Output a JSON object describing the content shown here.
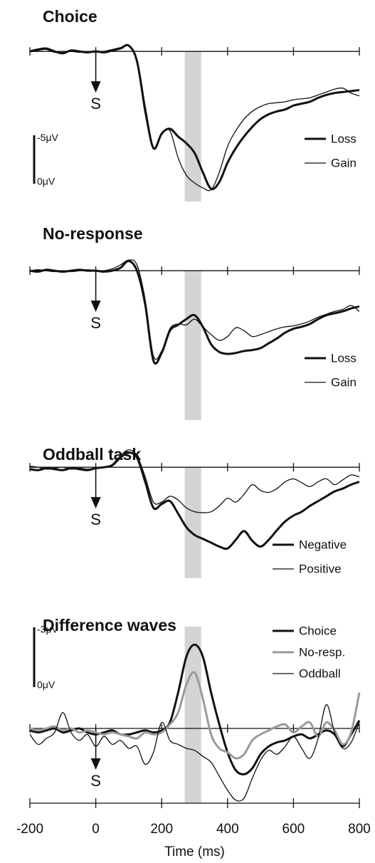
{
  "chart_data": [
    {
      "type": "line",
      "title": "Choice",
      "invert_y": true,
      "xlim": [
        -200,
        800
      ],
      "ylim": [
        -2,
        15
      ],
      "xticks": [
        -200,
        0,
        200,
        400,
        600,
        800
      ],
      "legend": "lower right",
      "highlight": [
        270,
        320
      ],
      "marker": {
        "x": 0,
        "label": "S"
      },
      "scalebar": {
        "values": [
          -5,
          0
        ],
        "labels": [
          "-5μV",
          "0μV"
        ]
      },
      "x": [
        -200,
        -175,
        -150,
        -125,
        -100,
        -75,
        -50,
        -25,
        0,
        25,
        50,
        75,
        100,
        125,
        150,
        175,
        200,
        225,
        250,
        275,
        300,
        325,
        350,
        375,
        400,
        425,
        450,
        475,
        500,
        525,
        550,
        575,
        600,
        625,
        650,
        675,
        700,
        725,
        750,
        775,
        800
      ],
      "series": [
        {
          "name": "Loss",
          "color": "#111111",
          "linewidth": 3,
          "values": [
            0,
            -0.2,
            -0.3,
            0,
            0.2,
            -0.1,
            0,
            0.1,
            0,
            0.1,
            -0.1,
            -0.3,
            -0.6,
            1.0,
            6.0,
            10.0,
            8.5,
            8.0,
            8.8,
            9.5,
            10.5,
            12.5,
            14.2,
            13.5,
            11.5,
            10,
            8.8,
            7.8,
            7,
            6.5,
            6.2,
            6,
            5.6,
            5.4,
            5.2,
            4.8,
            4.5,
            4.3,
            4.2,
            4.1,
            4.0
          ]
        },
        {
          "name": "Gain",
          "color": "#111111",
          "linewidth": 1.3,
          "values": [
            0,
            -0.1,
            -0.2,
            0.1,
            0.1,
            0,
            0.1,
            0,
            0.1,
            0,
            -0.2,
            -0.4,
            -0.6,
            1.2,
            6.5,
            10,
            8.6,
            8.2,
            11,
            12.8,
            13.6,
            14.1,
            14.3,
            12.5,
            9.8,
            8.2,
            7,
            6.2,
            5.7,
            5.4,
            5.3,
            5.2,
            5.0,
            4.9,
            4.8,
            4.5,
            4.2,
            3.9,
            3.8,
            4.3,
            4.6
          ]
        }
      ]
    },
    {
      "type": "line",
      "title": "No-response",
      "invert_y": true,
      "xlim": [
        -200,
        800
      ],
      "ylim": [
        -2,
        15
      ],
      "xticks": [
        -200,
        0,
        200,
        400,
        600,
        800
      ],
      "legend": "lower right",
      "highlight": [
        270,
        320
      ],
      "marker": {
        "x": 0,
        "label": "S"
      },
      "x": [
        -200,
        -175,
        -150,
        -125,
        -100,
        -75,
        -50,
        -25,
        0,
        25,
        50,
        75,
        100,
        125,
        150,
        175,
        200,
        225,
        250,
        275,
        300,
        325,
        350,
        375,
        400,
        425,
        450,
        475,
        500,
        525,
        550,
        575,
        600,
        625,
        650,
        675,
        700,
        725,
        750,
        775,
        800
      ],
      "series": [
        {
          "name": "Loss",
          "color": "#111111",
          "linewidth": 3,
          "values": [
            0,
            0.1,
            -0.1,
            0,
            0.1,
            0,
            -0.1,
            0,
            0,
            0.1,
            0,
            -0.3,
            -1.0,
            0,
            3.5,
            9.3,
            8.5,
            6.2,
            5.6,
            5.0,
            4.6,
            5.8,
            7.6,
            8.4,
            8.6,
            8.5,
            8.3,
            8.2,
            8.0,
            7.5,
            7.0,
            6.4,
            6.0,
            5.8,
            5.5,
            5.0,
            4.6,
            4.4,
            4.2,
            3.9,
            3.7
          ]
        },
        {
          "name": "Gain",
          "color": "#111111",
          "linewidth": 1.3,
          "values": [
            0,
            -0.1,
            0,
            0.1,
            0,
            0.1,
            0,
            -0.1,
            0,
            0,
            -0.2,
            -0.6,
            -1.1,
            -0.6,
            3.0,
            8.8,
            8.3,
            6.0,
            5.5,
            5.6,
            5.0,
            5.8,
            6.6,
            7.2,
            6.8,
            5.9,
            6.2,
            6.8,
            6.6,
            6.3,
            6.0,
            5.8,
            5.7,
            5.5,
            5.2,
            4.8,
            4.5,
            4.2,
            4.0,
            3.6,
            4.2
          ]
        }
      ]
    },
    {
      "type": "line",
      "title": "Oddball task",
      "invert_y": true,
      "xlim": [
        -200,
        800
      ],
      "ylim": [
        -2,
        15
      ],
      "xticks": [
        -200,
        0,
        200,
        400,
        600,
        800
      ],
      "legend": "lower right",
      "highlight": [
        270,
        320
      ],
      "marker": {
        "x": 0,
        "label": "S"
      },
      "x": [
        -200,
        -175,
        -150,
        -125,
        -100,
        -75,
        -50,
        -25,
        0,
        25,
        50,
        75,
        100,
        125,
        150,
        175,
        200,
        225,
        250,
        275,
        300,
        325,
        350,
        375,
        400,
        425,
        450,
        475,
        500,
        525,
        550,
        575,
        600,
        625,
        650,
        675,
        700,
        725,
        750,
        775,
        800
      ],
      "series": [
        {
          "name": "Negative",
          "color": "#111111",
          "linewidth": 3,
          "values": [
            0.2,
            0.3,
            0.1,
            0.2,
            0.3,
            0.1,
            0.2,
            0.3,
            0.1,
            0.0,
            -0.2,
            -1.0,
            -1.5,
            -1.0,
            1.5,
            4.2,
            3.8,
            3.5,
            4.8,
            6.2,
            7.0,
            7.4,
            7.8,
            8.2,
            8.4,
            7.5,
            6.6,
            7.6,
            8.2,
            7.5,
            6.5,
            5.6,
            5.0,
            4.6,
            4.0,
            3.5,
            3.0,
            2.5,
            2.2,
            1.8,
            1.5
          ]
        },
        {
          "name": "Positive",
          "color": "#111111",
          "linewidth": 1.3,
          "values": [
            -0.1,
            0,
            0.2,
            0.1,
            0,
            0.2,
            0.1,
            0.2,
            0.1,
            0,
            -0.3,
            -1.2,
            -1.8,
            -1.2,
            1.0,
            3.6,
            3.6,
            3.0,
            3.4,
            4.2,
            4.6,
            4.7,
            4.6,
            4.0,
            3.2,
            3.6,
            2.8,
            1.8,
            2.4,
            2.6,
            2.2,
            1.5,
            1.2,
            1.6,
            2.0,
            1.5,
            1.2,
            1.8,
            1.3,
            0.8,
            1.0
          ]
        }
      ]
    },
    {
      "type": "line",
      "title": "Difference waves",
      "invert_y": true,
      "xlim": [
        -200,
        800
      ],
      "ylim": [
        -5,
        4
      ],
      "xticks": [
        -200,
        0,
        200,
        400,
        600,
        800
      ],
      "xlabel": "Time (ms)",
      "legend": "upper right",
      "highlight": [
        270,
        320
      ],
      "marker": {
        "x": 0,
        "label": "S"
      },
      "scalebar": {
        "values": [
          -3,
          0
        ],
        "labels": [
          "-3μV",
          "0μV"
        ]
      },
      "x": [
        -200,
        -175,
        -150,
        -125,
        -100,
        -75,
        -50,
        -25,
        0,
        25,
        50,
        75,
        100,
        125,
        150,
        175,
        200,
        225,
        250,
        275,
        300,
        325,
        350,
        375,
        400,
        425,
        450,
        475,
        500,
        525,
        550,
        575,
        600,
        625,
        650,
        675,
        700,
        725,
        750,
        775,
        800
      ],
      "series": [
        {
          "name": "Choice",
          "color": "#111111",
          "linewidth": 3,
          "values": [
            0.1,
            0.2,
            0.1,
            0,
            0.2,
            0.1,
            0,
            0.2,
            0.3,
            0.2,
            0.1,
            0.3,
            0.3,
            0.2,
            0.1,
            0.2,
            0.1,
            -0.3,
            -1.8,
            -3.6,
            -4.2,
            -3.6,
            -1.8,
            -0.2,
            1.2,
            2.1,
            2.3,
            2.0,
            1.3,
            0.9,
            0.7,
            0.6,
            0.4,
            0.3,
            0.5,
            0.3,
            0.1,
            0.3,
            0.9,
            0.3,
            -0.4
          ]
        },
        {
          "name": "No-resp.",
          "color": "#9a9a9a",
          "linewidth": 3,
          "values": [
            0,
            0.1,
            0,
            -0.1,
            0.1,
            0,
            0.2,
            0.1,
            0.2,
            0.3,
            0.2,
            0.3,
            0.4,
            0.5,
            0.2,
            0.3,
            0.2,
            -0.2,
            -0.8,
            -2.2,
            -2.8,
            -1.5,
            0.3,
            1.0,
            1.2,
            1.5,
            1.3,
            0.6,
            0.3,
            0.1,
            -0.1,
            -0.2,
            0.2,
            -0.1,
            -0.3,
            0.4,
            -0.3,
            0.1,
            0.8,
            0.2,
            -1.8
          ]
        },
        {
          "name": "Oddball",
          "color": "#111111",
          "linewidth": 1.3,
          "values": [
            0.3,
            0.8,
            0.5,
            0.2,
            -0.8,
            0.2,
            0.6,
            0.3,
            0.9,
            0.4,
            0.8,
            0.6,
            1.0,
            0.9,
            1.8,
            1.2,
            -0.3,
            0.6,
            0.8,
            1.0,
            1.1,
            1.4,
            1.7,
            2.4,
            3.1,
            3.6,
            3.5,
            2.5,
            1.6,
            1.1,
            1.3,
            0.9,
            0.4,
            1.0,
            1.5,
            0.5,
            -1.2,
            0.2,
            1.0,
            0.7,
            -0.3
          ]
        }
      ]
    }
  ]
}
